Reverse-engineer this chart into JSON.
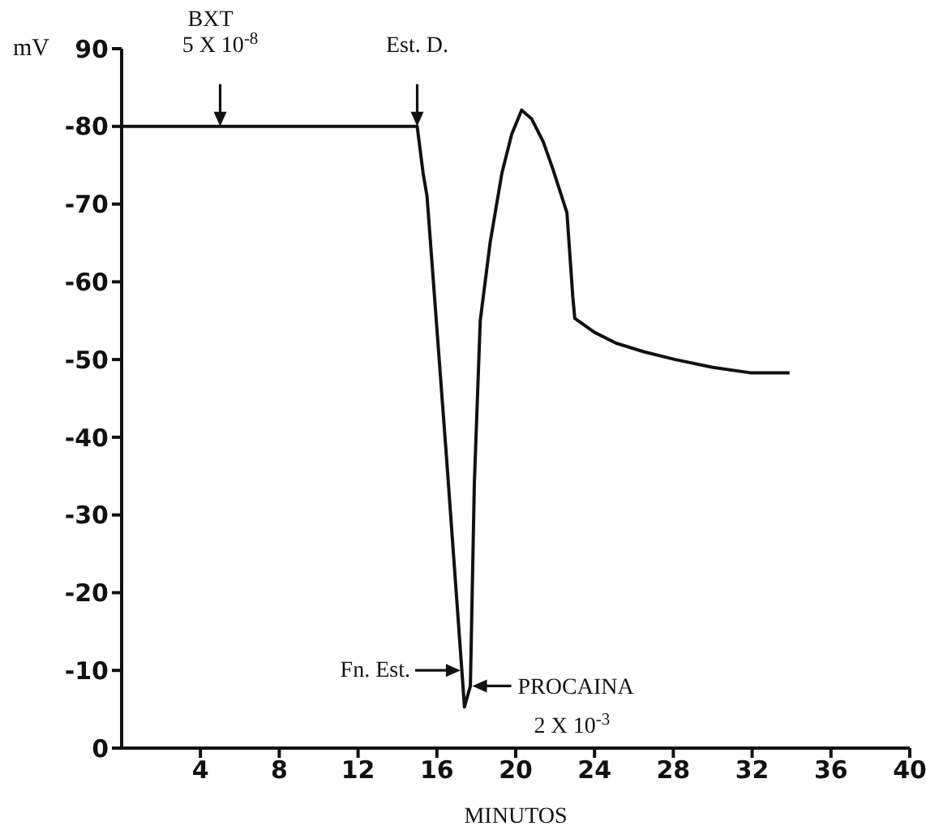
{
  "chart_data": {
    "type": "line",
    "xlabel": "MINUTOS",
    "ylabel": "mV",
    "x": [
      0,
      15,
      15.1,
      15.3,
      15.5,
      16.5,
      17.4,
      17.7,
      17.9,
      18.2,
      18.7,
      19.3,
      19.8,
      20.3,
      20.8,
      21.4,
      21.9,
      22.6,
      22.9,
      23.0,
      24,
      25.1,
      26.5,
      28.1,
      30,
      31.9,
      33.9
    ],
    "series": [
      {
        "color": "#111111",
        "values": [
          -80,
          -80,
          -78,
          -74,
          -71,
          -37,
          -5.3,
          -8,
          -34,
          -55,
          -65,
          -74,
          -79,
          -82.1,
          -81,
          -78,
          -74.4,
          -68.9,
          -58,
          -55.3,
          -53.5,
          -52.1,
          -51,
          -50,
          -49,
          -48.3,
          -48.3
        ]
      }
    ],
    "xlim": [
      0,
      40
    ],
    "xticks": [
      4,
      8,
      12,
      16,
      20,
      24,
      28,
      32,
      36,
      40
    ],
    "ylim": [
      0,
      -90
    ],
    "yticks": [
      0,
      -10,
      -20,
      -30,
      -40,
      -50,
      -60,
      -70,
      -80,
      {
        "value": -90,
        "label": "90"
      }
    ],
    "annotations": [
      {
        "text": "BXT\n5 X 10$^{-8}$",
        "x": 5,
        "y": -80
      },
      {
        "text": "Est. D.",
        "x": 15,
        "y": -80
      },
      {
        "text": "Fn. Est.",
        "x": 17.2,
        "y": -10
      },
      {
        "text": "PROCAINA\n2 X 10$^{-3}$",
        "x": 17.8,
        "y": -8
      }
    ],
    "grid": false,
    "legend": false,
    "marker": "none",
    "line_style": "solid"
  }
}
